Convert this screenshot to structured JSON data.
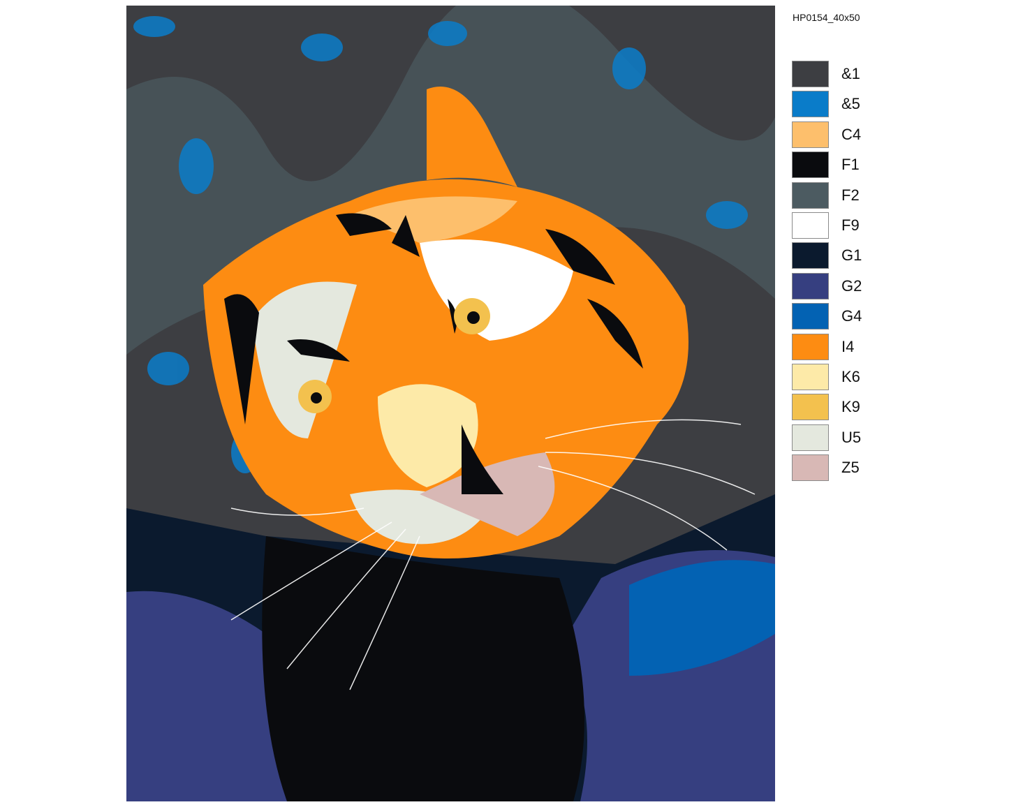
{
  "product_code": "HP0154_40x50",
  "painting": {
    "subject": "tiger-face-painting"
  },
  "legend": [
    {
      "code": "&1",
      "color": "#3d3e42"
    },
    {
      "code": "&5",
      "color": "#0a7cc9"
    },
    {
      "code": "C4",
      "color": "#fdbf6c"
    },
    {
      "code": "F1",
      "color": "#0a0b0e"
    },
    {
      "code": "F2",
      "color": "#4c5b61"
    },
    {
      "code": "F9",
      "color": "#ffffff"
    },
    {
      "code": "G1",
      "color": "#0b1a2e"
    },
    {
      "code": "G2",
      "color": "#363f80"
    },
    {
      "code": "G4",
      "color": "#0362b3"
    },
    {
      "code": "I4",
      "color": "#fd8c12"
    },
    {
      "code": "K6",
      "color": "#fdeaa8"
    },
    {
      "code": "K9",
      "color": "#f3c14e"
    },
    {
      "code": "U5",
      "color": "#e4e8de"
    },
    {
      "code": "Z5",
      "color": "#d8b8b5"
    }
  ]
}
